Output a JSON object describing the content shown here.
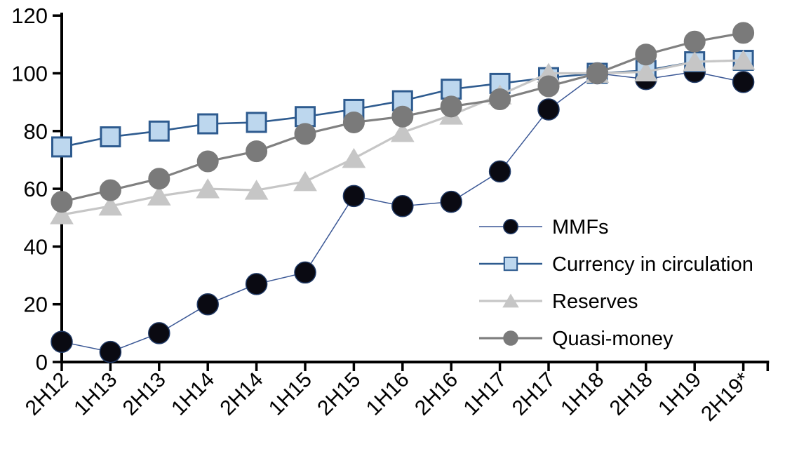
{
  "chart_data": {
    "type": "line",
    "title": "",
    "xlabel": "",
    "ylabel": "",
    "grid": false,
    "ylim": [
      0,
      120
    ],
    "yticks": [
      0,
      20,
      40,
      60,
      80,
      100,
      120
    ],
    "legend_position": "inside-right",
    "categories": [
      "2H12",
      "1H13",
      "2H13",
      "1H14",
      "2H14",
      "1H15",
      "2H15",
      "1H16",
      "2H16",
      "1H17",
      "2H17",
      "1H18",
      "2H18",
      "1H19",
      "2H19*"
    ],
    "series": [
      {
        "name": "MMFs",
        "marker": "dot",
        "line_color": "#3A5795",
        "line_width": 1.5,
        "marker_fill": "#0A0A12",
        "marker_stroke": "#1F3864",
        "values": [
          7,
          3.5,
          10,
          20,
          27,
          31,
          57.5,
          54,
          55.5,
          66,
          87.5,
          100,
          98,
          100.5,
          97
        ]
      },
      {
        "name": "Currency in circulation",
        "marker": "square",
        "line_color": "#2E5B8F",
        "line_width": 2.6,
        "marker_fill": "#BDD7EE",
        "marker_stroke": "#2E5B8F",
        "values": [
          74.5,
          78,
          80,
          82.5,
          83,
          85,
          87.5,
          90.5,
          94.5,
          96.5,
          98.5,
          100,
          101,
          104,
          104.5
        ]
      },
      {
        "name": "Reserves",
        "marker": "triangle",
        "line_color": "#C6C6C6",
        "line_width": 3.2,
        "marker_fill": "#C6C6C6",
        "marker_stroke": "#C6C6C6",
        "values": [
          51,
          54,
          57.5,
          60,
          59.5,
          62.5,
          70.5,
          79.5,
          85.5,
          92.5,
          100,
          100,
          100.5,
          104,
          104.5
        ]
      },
      {
        "name": "Quasi-money",
        "marker": "circle",
        "line_color": "#808080",
        "line_width": 3.2,
        "marker_fill": "#7A7A7A",
        "marker_stroke": "#7A7A7A",
        "values": [
          55.5,
          59.5,
          63.5,
          69.5,
          73,
          79,
          83,
          85,
          88.5,
          91,
          95.5,
          100,
          106.5,
          111,
          114
        ]
      }
    ],
    "axis_color": "#000000"
  }
}
